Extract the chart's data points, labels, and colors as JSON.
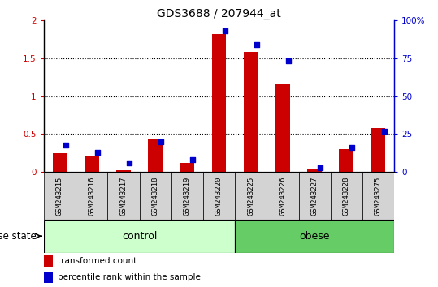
{
  "title": "GDS3688 / 207944_at",
  "samples": [
    "GSM243215",
    "GSM243216",
    "GSM243217",
    "GSM243218",
    "GSM243219",
    "GSM243220",
    "GSM243225",
    "GSM243226",
    "GSM243227",
    "GSM243228",
    "GSM243275"
  ],
  "red_values": [
    0.25,
    0.22,
    0.03,
    0.43,
    0.12,
    1.82,
    1.58,
    1.17,
    0.04,
    0.3,
    0.58
  ],
  "blue_values": [
    18,
    13,
    6,
    20,
    8,
    93,
    84,
    73,
    3,
    16,
    27
  ],
  "control_count": 6,
  "obese_count": 5,
  "ylim_left": [
    0,
    2
  ],
  "ylim_right": [
    0,
    100
  ],
  "yticks_left": [
    0,
    0.5,
    1.0,
    1.5,
    2.0
  ],
  "yticks_right": [
    0,
    25,
    50,
    75,
    100
  ],
  "ytick_labels_left": [
    "0",
    "0.5",
    "1",
    "1.5",
    "2"
  ],
  "ytick_labels_right": [
    "0",
    "25",
    "50",
    "75",
    "100%"
  ],
  "bar_color_red": "#cc0000",
  "bar_color_blue": "#0000cc",
  "control_color": "#ccffcc",
  "obese_color": "#66cc66",
  "sample_box_color": "#d3d3d3",
  "legend_red": "transformed count",
  "legend_blue": "percentile rank within the sample",
  "disease_label": "disease state",
  "control_label": "control",
  "obese_label": "obese",
  "title_fontsize": 10,
  "tick_fontsize": 7.5,
  "sample_fontsize": 6.5,
  "legend_fontsize": 7.5,
  "disease_fontsize": 8.5,
  "group_fontsize": 9
}
